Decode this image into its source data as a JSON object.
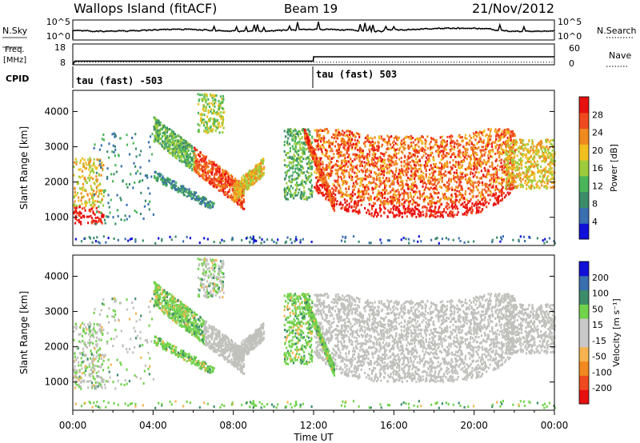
{
  "header": {
    "site": "Wallops Island (fitACF)",
    "beam": "Beam 19",
    "date": "21/Nov/2012"
  },
  "colors": {
    "power": [
      "#1010d8",
      "#3a6fb0",
      "#3c8c6a",
      "#4bb55a",
      "#9ccc3c",
      "#f0c020",
      "#f08a20",
      "#ef4a1e",
      "#e81010"
    ],
    "velocity": [
      "#e81010",
      "#ef4a1e",
      "#f08a20",
      "#f6b450",
      "#c8c8c8",
      "#c8c8c8",
      "#72d24c",
      "#3c8c6a",
      "#3a6fb0",
      "#1010d8"
    ],
    "ground_scatter": "#c0c0bc"
  },
  "chart_data": [
    {
      "name": "noise",
      "type": "line",
      "left_label": "N.Sky",
      "right_label": "N.Search",
      "left_ticks": [
        "10^5",
        "10^0"
      ],
      "right_ticks": [
        "10^5",
        "10^0"
      ]
    },
    {
      "name": "freq-nave",
      "type": "line",
      "left_label_top": "Freq.",
      "left_label_bottom": "[MHz]",
      "left_ticks": [
        "18",
        "8"
      ],
      "right_label": "Nave",
      "right_ticks": [
        "60",
        "0"
      ],
      "freq_mhz": {
        "x_hours": [
          0,
          0.1,
          11.98,
          12.0,
          24.0
        ],
        "y": [
          8,
          10.3,
          10.3,
          13,
          13
        ]
      },
      "nave": {
        "x_hours": [
          0,
          24
        ],
        "y": [
          10,
          10
        ]
      }
    },
    {
      "name": "cpid",
      "type": "table",
      "label": "CPID",
      "segments": [
        {
          "start_hour": 0,
          "text": "tau (fast) -503"
        },
        {
          "start_hour": 12,
          "text": "tau (fast) 503"
        }
      ]
    },
    {
      "name": "power",
      "type": "heatmap",
      "ylabel": "Slant Range [km]",
      "yticks": [
        1000,
        2000,
        3000,
        4000
      ],
      "ylim": [
        200,
        4600
      ],
      "xlim_hours": [
        0,
        24
      ],
      "colorbar_label": "Power [dB]",
      "colorbar_ticks": [
        "28",
        "24",
        "20",
        "16",
        "12",
        "8",
        "4"
      ]
    },
    {
      "name": "velocity",
      "type": "heatmap",
      "ylabel": "Slant Range [km]",
      "yticks": [
        1000,
        2000,
        3000,
        4000
      ],
      "ylim": [
        200,
        4600
      ],
      "xlim_hours": [
        0,
        24
      ],
      "colorbar_label": "Velocity [m s⁻¹]",
      "colorbar_ticks": [
        "200",
        "100",
        "50",
        "15",
        "-15",
        "-50",
        "-100",
        "-200"
      ]
    }
  ],
  "x_axis": {
    "ticks": [
      "00:00",
      "04:00",
      "08:00",
      "12:00",
      "16:00",
      "20:00",
      "00:00"
    ],
    "label": "Time UT"
  }
}
